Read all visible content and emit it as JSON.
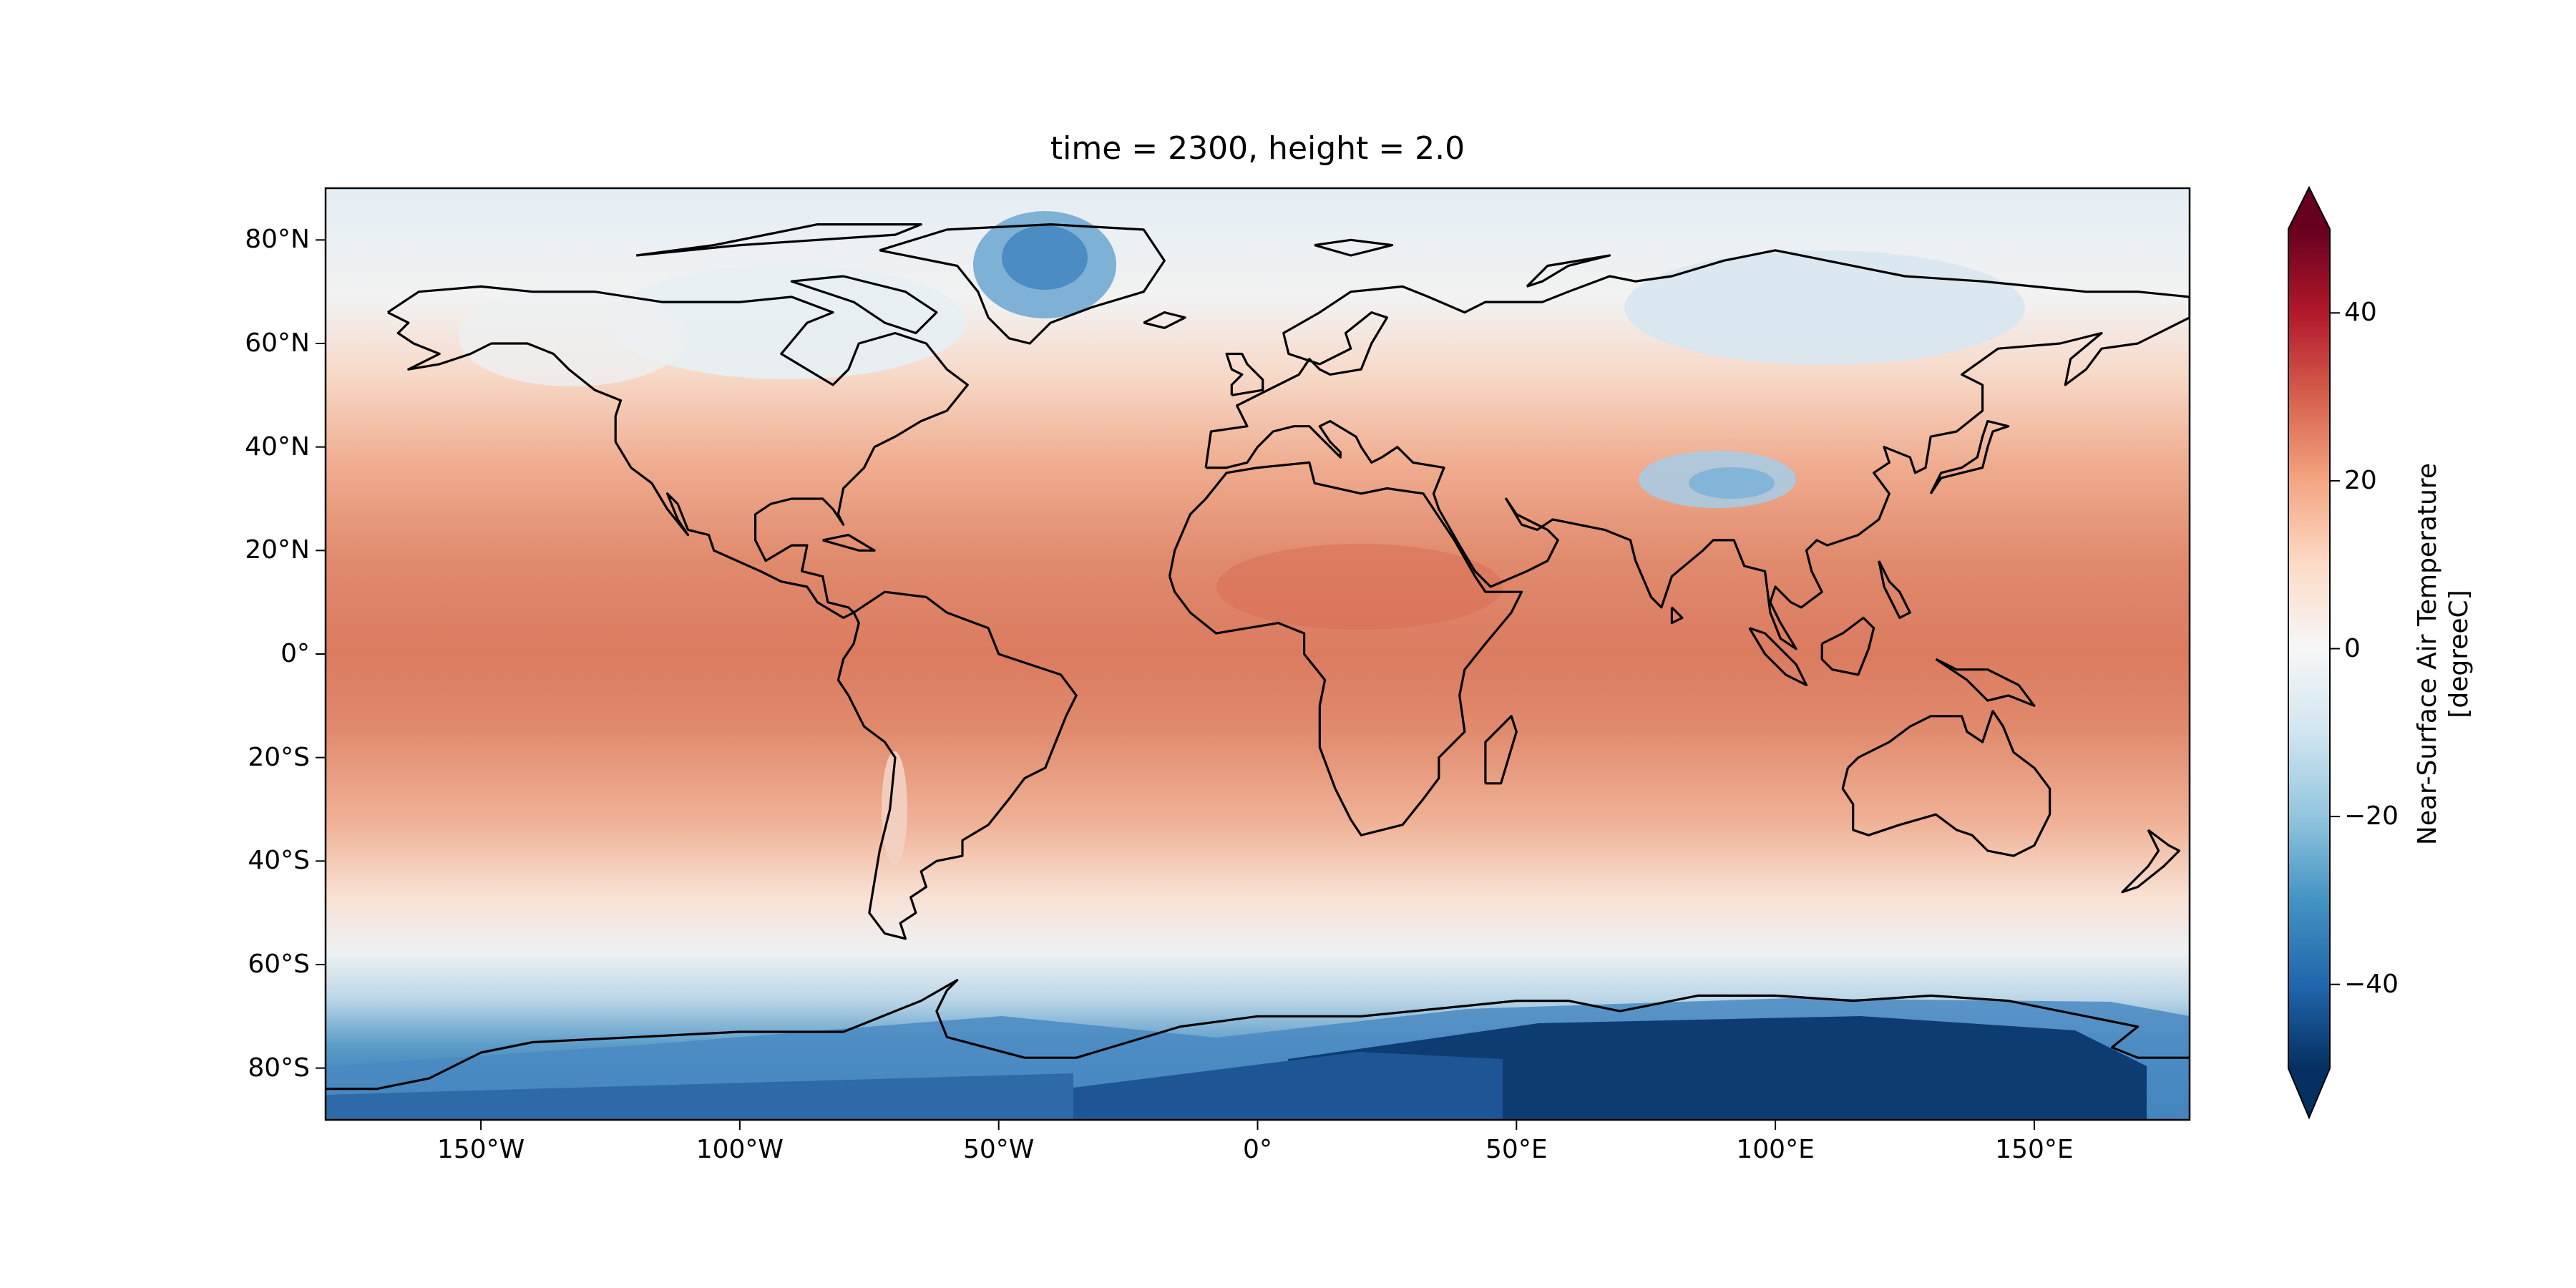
{
  "map": {
    "title": "time = 2300, height = 2.0",
    "projection": "PlateCarree",
    "extent": {
      "lon": [
        -180,
        180
      ],
      "lat": [
        -90,
        90
      ]
    },
    "x_ticks": [
      {
        "lon": -150,
        "label": "150°W"
      },
      {
        "lon": -100,
        "label": "100°W"
      },
      {
        "lon": -50,
        "label": "50°W"
      },
      {
        "lon": 0,
        "label": "0°"
      },
      {
        "lon": 50,
        "label": "50°E"
      },
      {
        "lon": 100,
        "label": "100°E"
      },
      {
        "lon": 150,
        "label": "150°E"
      }
    ],
    "y_ticks": [
      {
        "lat": 80,
        "label": "80°N"
      },
      {
        "lat": 60,
        "label": "60°N"
      },
      {
        "lat": 40,
        "label": "40°N"
      },
      {
        "lat": 20,
        "label": "20°N"
      },
      {
        "lat": 0,
        "label": "0°"
      },
      {
        "lat": -20,
        "label": "20°S"
      },
      {
        "lat": -40,
        "label": "40°S"
      },
      {
        "lat": -60,
        "label": "60°S"
      },
      {
        "lat": -80,
        "label": "80°S"
      }
    ],
    "coastline_color": "#000000"
  },
  "colorbar": {
    "label_line1": "Near-Surface Air Temperature",
    "label_line2": "[degreeC]",
    "range": [
      -50,
      50
    ],
    "extend": "both",
    "colormap": "RdBu_r",
    "ticks": [
      {
        "value": 40,
        "label": "40"
      },
      {
        "value": 20,
        "label": "20"
      },
      {
        "value": 0,
        "label": "0"
      },
      {
        "value": -20,
        "label": "−20"
      },
      {
        "value": -40,
        "label": "−40"
      }
    ],
    "stops": [
      "#053061",
      "#2166ac",
      "#4393c3",
      "#92c5de",
      "#d1e5f0",
      "#f7f7f7",
      "#fddbc7",
      "#f4a582",
      "#d6604d",
      "#b2182b",
      "#67001f"
    ]
  }
}
